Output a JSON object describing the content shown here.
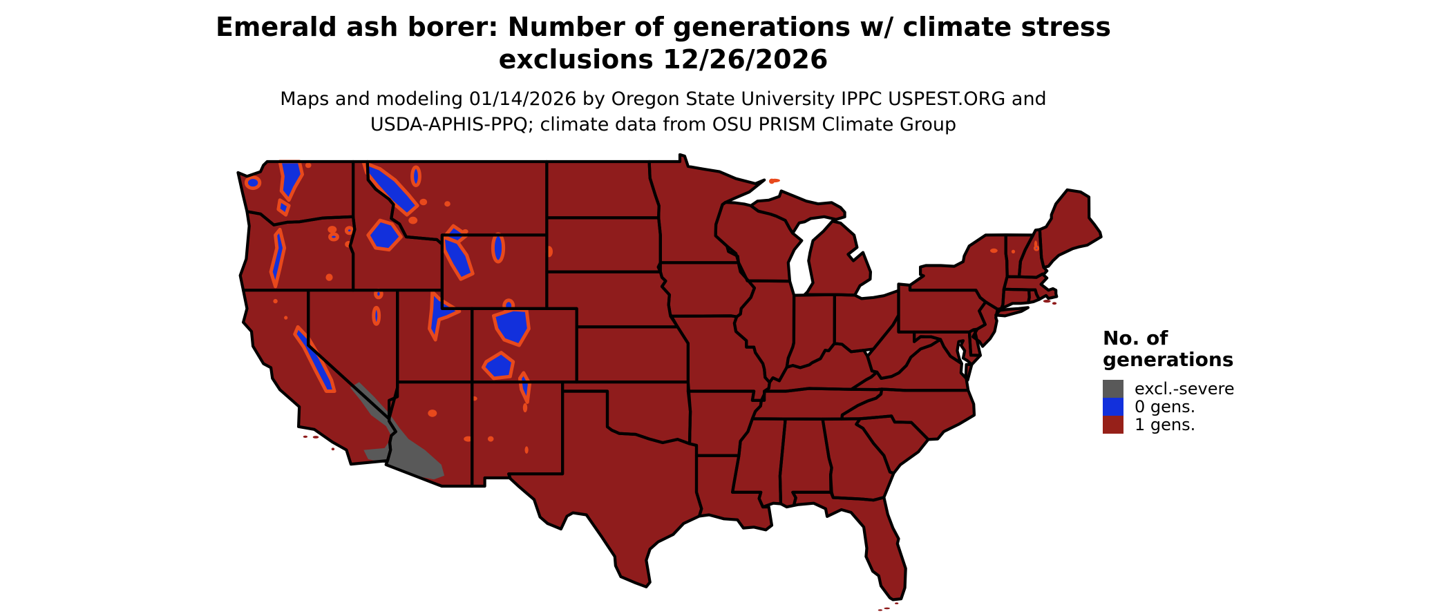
{
  "title": {
    "line1": "Emerald ash borer: Number of generations w/ climate stress",
    "line2": "exclusions 12/26/2026"
  },
  "subtitle": {
    "line1": "Maps and modeling 01/14/2026 by Oregon State University IPPC USPEST.ORG and",
    "line2": "USDA-APHIS-PPQ; climate data from OSU PRISM Climate Group"
  },
  "legend": {
    "title": "No. of\ngenerations",
    "items": [
      {
        "label": "excl.-severe",
        "color": "#595959"
      },
      {
        "label": "0 gens.",
        "color": "#1230dc"
      },
      {
        "label": "1 gens.",
        "color": "#962019"
      }
    ]
  },
  "map": {
    "region": "Contiguous United States",
    "base_color": "#8f1c1c",
    "zero_gens_color": "#1230dc",
    "exclusion_color": "#595959",
    "stress_fringe_color": "#e8491c",
    "border_color": "#000000",
    "background": "#ffffff"
  }
}
